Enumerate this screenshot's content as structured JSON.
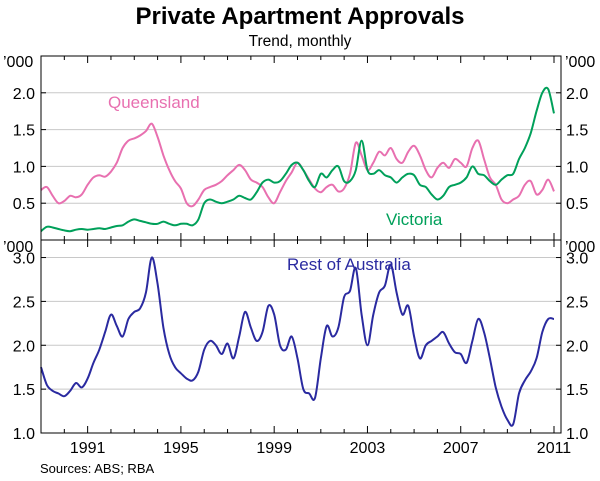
{
  "chart_data": {
    "type": "line",
    "title": "Private Apartment Approvals",
    "subtitle": "Trend, monthly",
    "source": "Sources: ABS; RBA",
    "x_ticks": [
      "1991",
      "1995",
      "1999",
      "2003",
      "2007",
      "2011"
    ],
    "x_range": [
      1989.0,
      2011.3
    ],
    "panels": [
      {
        "name": "top",
        "unit_left": "’000",
        "unit_right": "’000",
        "ylim": [
          0.0,
          2.5
        ],
        "yticks": [
          "0.5",
          "1.0",
          "1.5",
          "2.0"
        ],
        "ytick_values": [
          0.5,
          1.0,
          1.5,
          2.0
        ],
        "series": [
          {
            "name": "Queensland",
            "color": "#e870b0",
            "label": "Queensland",
            "x": [
              1989.0,
              1989.25,
              1989.5,
              1989.75,
              1990.0,
              1990.25,
              1990.5,
              1990.75,
              1991.0,
              1991.25,
              1991.5,
              1991.75,
              1992.0,
              1992.25,
              1992.5,
              1992.75,
              1993.0,
              1993.25,
              1993.5,
              1993.75,
              1994.0,
              1994.25,
              1994.5,
              1994.75,
              1995.0,
              1995.25,
              1995.5,
              1995.75,
              1996.0,
              1996.25,
              1996.5,
              1996.75,
              1997.0,
              1997.25,
              1997.5,
              1997.75,
              1998.0,
              1998.25,
              1998.5,
              1998.75,
              1999.0,
              1999.25,
              1999.5,
              1999.75,
              2000.0,
              2000.25,
              2000.5,
              2000.75,
              2001.0,
              2001.25,
              2001.5,
              2001.75,
              2002.0,
              2002.25,
              2002.5,
              2002.75,
              2003.0,
              2003.25,
              2003.5,
              2003.75,
              2004.0,
              2004.25,
              2004.5,
              2004.75,
              2005.0,
              2005.25,
              2005.5,
              2005.75,
              2006.0,
              2006.25,
              2006.5,
              2006.75,
              2007.0,
              2007.25,
              2007.5,
              2007.75,
              2008.0,
              2008.25,
              2008.5,
              2008.75,
              2009.0,
              2009.25,
              2009.5,
              2009.75,
              2010.0,
              2010.25,
              2010.5,
              2010.75,
              2011.0
            ],
            "y": [
              0.68,
              0.72,
              0.6,
              0.5,
              0.53,
              0.6,
              0.58,
              0.62,
              0.75,
              0.85,
              0.88,
              0.86,
              0.93,
              1.05,
              1.25,
              1.35,
              1.38,
              1.42,
              1.48,
              1.58,
              1.4,
              1.15,
              0.95,
              0.8,
              0.7,
              0.5,
              0.46,
              0.55,
              0.68,
              0.72,
              0.75,
              0.8,
              0.88,
              0.95,
              1.02,
              0.95,
              0.82,
              0.78,
              0.72,
              0.58,
              0.5,
              0.65,
              0.8,
              0.92,
              1.05,
              0.95,
              0.82,
              0.7,
              0.65,
              0.72,
              0.75,
              0.66,
              0.7,
              0.9,
              1.32,
              1.15,
              0.95,
              1.05,
              1.2,
              1.15,
              1.25,
              1.1,
              1.05,
              1.2,
              1.28,
              1.15,
              0.95,
              0.85,
              0.98,
              1.05,
              0.98,
              1.1,
              1.05,
              1.0,
              1.25,
              1.35,
              1.1,
              0.85,
              0.75,
              0.55,
              0.5,
              0.55,
              0.6,
              0.75,
              0.8,
              0.62,
              0.68,
              0.82,
              0.66
            ]
          },
          {
            "name": "Victoria",
            "color": "#00a05a",
            "label": "Victoria",
            "x": [
              1989.0,
              1989.25,
              1989.5,
              1989.75,
              1990.0,
              1990.25,
              1990.5,
              1990.75,
              1991.0,
              1991.25,
              1991.5,
              1991.75,
              1992.0,
              1992.25,
              1992.5,
              1992.75,
              1993.0,
              1993.25,
              1993.5,
              1993.75,
              1994.0,
              1994.25,
              1994.5,
              1994.75,
              1995.0,
              1995.25,
              1995.5,
              1995.75,
              1996.0,
              1996.25,
              1996.5,
              1996.75,
              1997.0,
              1997.25,
              1997.5,
              1997.75,
              1998.0,
              1998.25,
              1998.5,
              1998.75,
              1999.0,
              1999.25,
              1999.5,
              1999.75,
              2000.0,
              2000.25,
              2000.5,
              2000.75,
              2001.0,
              2001.25,
              2001.5,
              2001.75,
              2002.0,
              2002.25,
              2002.5,
              2002.75,
              2003.0,
              2003.25,
              2003.5,
              2003.75,
              2004.0,
              2004.25,
              2004.5,
              2004.75,
              2005.0,
              2005.25,
              2005.5,
              2005.75,
              2006.0,
              2006.25,
              2006.5,
              2006.75,
              2007.0,
              2007.25,
              2007.5,
              2007.75,
              2008.0,
              2008.25,
              2008.5,
              2008.75,
              2009.0,
              2009.25,
              2009.5,
              2009.75,
              2010.0,
              2010.25,
              2010.5,
              2010.75,
              2011.0
            ],
            "y": [
              0.12,
              0.18,
              0.17,
              0.15,
              0.13,
              0.12,
              0.14,
              0.15,
              0.14,
              0.15,
              0.16,
              0.15,
              0.17,
              0.19,
              0.2,
              0.25,
              0.28,
              0.26,
              0.24,
              0.22,
              0.22,
              0.25,
              0.22,
              0.2,
              0.22,
              0.22,
              0.2,
              0.28,
              0.5,
              0.55,
              0.52,
              0.5,
              0.52,
              0.55,
              0.6,
              0.57,
              0.55,
              0.65,
              0.78,
              0.82,
              0.78,
              0.8,
              0.9,
              1.02,
              1.05,
              0.95,
              0.8,
              0.72,
              0.9,
              0.85,
              0.95,
              1.0,
              0.8,
              0.8,
              0.95,
              1.35,
              0.95,
              0.9,
              0.95,
              0.88,
              0.85,
              0.78,
              0.85,
              0.9,
              0.88,
              0.75,
              0.72,
              0.62,
              0.55,
              0.6,
              0.72,
              0.75,
              0.78,
              0.85,
              1.0,
              0.9,
              0.88,
              0.8,
              0.75,
              0.82,
              0.88,
              0.9,
              1.1,
              1.25,
              1.45,
              1.75,
              2.0,
              2.05,
              1.72
            ]
          }
        ]
      },
      {
        "name": "bottom",
        "unit_left": "’000",
        "unit_right": "’000",
        "ylim": [
          1.0,
          3.2
        ],
        "yticks": [
          "1.0",
          "1.5",
          "2.0",
          "2.5",
          "3.0"
        ],
        "ytick_values": [
          1.0,
          1.5,
          2.0,
          2.5,
          3.0
        ],
        "series": [
          {
            "name": "Rest of Australia",
            "color": "#2a2aa0",
            "label": "Rest of Australia",
            "x": [
              1989.0,
              1989.25,
              1989.5,
              1989.75,
              1990.0,
              1990.25,
              1990.5,
              1990.75,
              1991.0,
              1991.25,
              1991.5,
              1991.75,
              1992.0,
              1992.25,
              1992.5,
              1992.75,
              1993.0,
              1993.25,
              1993.5,
              1993.75,
              1994.0,
              1994.25,
              1994.5,
              1994.75,
              1995.0,
              1995.25,
              1995.5,
              1995.75,
              1996.0,
              1996.25,
              1996.5,
              1996.75,
              1997.0,
              1997.25,
              1997.5,
              1997.75,
              1998.0,
              1998.25,
              1998.5,
              1998.75,
              1999.0,
              1999.25,
              1999.5,
              1999.75,
              2000.0,
              2000.25,
              2000.5,
              2000.75,
              2001.0,
              2001.25,
              2001.5,
              2001.75,
              2002.0,
              2002.25,
              2002.5,
              2002.75,
              2003.0,
              2003.25,
              2003.5,
              2003.75,
              2004.0,
              2004.25,
              2004.5,
              2004.75,
              2005.0,
              2005.25,
              2005.5,
              2005.75,
              2006.0,
              2006.25,
              2006.5,
              2006.75,
              2007.0,
              2007.25,
              2007.5,
              2007.75,
              2008.0,
              2008.25,
              2008.5,
              2008.75,
              2009.0,
              2009.25,
              2009.5,
              2009.75,
              2010.0,
              2010.25,
              2010.5,
              2010.75,
              2011.0
            ],
            "y": [
              1.75,
              1.55,
              1.48,
              1.45,
              1.42,
              1.48,
              1.57,
              1.52,
              1.62,
              1.8,
              1.95,
              2.15,
              2.35,
              2.22,
              2.1,
              2.3,
              2.38,
              2.42,
              2.6,
              3.0,
              2.7,
              2.2,
              1.9,
              1.75,
              1.68,
              1.62,
              1.6,
              1.7,
              1.95,
              2.05,
              2.0,
              1.9,
              2.02,
              1.85,
              2.1,
              2.38,
              2.2,
              2.05,
              2.15,
              2.45,
              2.35,
              2.0,
              1.95,
              2.1,
              1.85,
              1.5,
              1.45,
              1.4,
              1.85,
              2.22,
              2.1,
              2.2,
              2.55,
              2.62,
              2.88,
              2.35,
              2.0,
              2.35,
              2.6,
              2.68,
              2.92,
              2.6,
              2.35,
              2.45,
              2.1,
              1.85,
              2.0,
              2.05,
              2.1,
              2.15,
              2.02,
              1.92,
              1.9,
              1.8,
              2.05,
              2.3,
              2.15,
              1.85,
              1.52,
              1.3,
              1.15,
              1.1,
              1.45,
              1.6,
              1.7,
              1.85,
              2.15,
              2.3,
              2.3
            ]
          }
        ]
      }
    ]
  }
}
